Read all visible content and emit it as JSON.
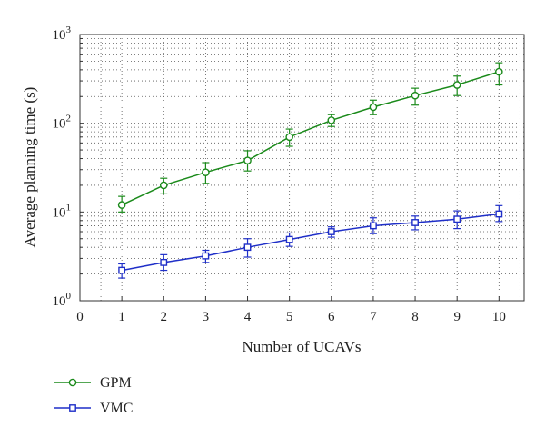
{
  "chart_data": {
    "type": "line",
    "xlabel": "Number of UCAVs",
    "ylabel": "Average planning time (s)",
    "x_ticks": [
      "0",
      "1",
      "2",
      "3",
      "4",
      "5",
      "6",
      "7",
      "8",
      "9",
      "10"
    ],
    "xlim": [
      0,
      10.6
    ],
    "yscale": "log",
    "ylim": [
      1,
      1000
    ],
    "y_ticks": [
      {
        "value": 1,
        "base": "10",
        "exp": "0"
      },
      {
        "value": 10,
        "base": "10",
        "exp": "1"
      },
      {
        "value": 100,
        "base": "10",
        "exp": "2"
      },
      {
        "value": 1000,
        "base": "10",
        "exp": "3"
      }
    ],
    "grid": true,
    "legend_position": "below",
    "x": [
      1,
      2,
      3,
      4,
      5,
      6,
      7,
      8,
      9,
      10
    ],
    "series": [
      {
        "name": "GPM",
        "color": "#1a8a1a",
        "marker": "circle",
        "values": [
          12,
          20,
          28,
          38,
          70,
          108,
          152,
          205,
          270,
          380
        ],
        "lower": [
          10,
          16,
          21,
          29,
          55,
          92,
          125,
          160,
          205,
          270
        ],
        "upper": [
          15,
          24,
          36,
          49,
          86,
          125,
          182,
          248,
          340,
          480
        ]
      },
      {
        "name": "VMC",
        "color": "#1f2fc8",
        "marker": "square",
        "values": [
          2.2,
          2.7,
          3.2,
          4.0,
          4.9,
          6.0,
          7.0,
          7.6,
          8.3,
          9.5
        ],
        "lower": [
          1.8,
          2.2,
          2.7,
          3.1,
          4.1,
          5.2,
          5.7,
          6.3,
          6.5,
          7.8
        ],
        "upper": [
          2.6,
          3.3,
          3.7,
          5.0,
          5.8,
          6.8,
          8.6,
          9.0,
          10.3,
          11.8
        ]
      }
    ]
  }
}
